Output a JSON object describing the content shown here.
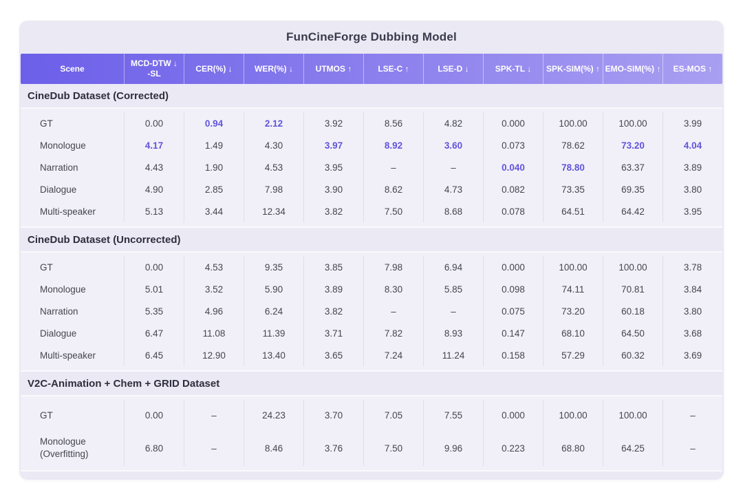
{
  "colors": {
    "card_background": "#EAE9F4",
    "rows_background": "#F1F0F8",
    "header_gradient_start": "#6C5FE9",
    "header_gradient_end": "#A99FF1",
    "header_text": "#FFFFFF",
    "highlight_value": "#6154DB",
    "body_text": "#45454F"
  },
  "chart_data": {
    "type": "table",
    "title": "FunCineForge Dubbing Model",
    "columns": [
      {
        "text": "Scene",
        "sub": ""
      },
      {
        "text": "MCD-DTW ↓",
        "sub": "-SL"
      },
      {
        "text": "CER(%) ↓",
        "sub": ""
      },
      {
        "text": "WER(%) ↓",
        "sub": ""
      },
      {
        "text": "UTMOS ↑",
        "sub": ""
      },
      {
        "text": "LSE-C ↑",
        "sub": ""
      },
      {
        "text": "LSE-D ↓",
        "sub": ""
      },
      {
        "text": "SPK-TL ↓",
        "sub": ""
      },
      {
        "text": "SPK-SIM(%) ↑",
        "sub": ""
      },
      {
        "text": "EMO-SIM(%) ↑",
        "sub": ""
      },
      {
        "text": "ES-MOS ↑",
        "sub": ""
      }
    ],
    "sections": [
      {
        "title": "CineDub Dataset (Corrected)",
        "rows": [
          {
            "scene": "GT",
            "values": [
              "0.00",
              "0.94",
              "2.12",
              "3.92",
              "8.56",
              "4.82",
              "0.000",
              "100.00",
              "100.00",
              "3.99"
            ],
            "highlights": [
              1,
              2
            ]
          },
          {
            "scene": "Monologue",
            "values": [
              "4.17",
              "1.49",
              "4.30",
              "3.97",
              "8.92",
              "3.60",
              "0.073",
              "78.62",
              "73.20",
              "4.04"
            ],
            "highlights": [
              0,
              3,
              4,
              5,
              8,
              9
            ]
          },
          {
            "scene": "Narration",
            "values": [
              "4.43",
              "1.90",
              "4.53",
              "3.95",
              "–",
              "–",
              "0.040",
              "78.80",
              "63.37",
              "3.89"
            ],
            "highlights": [
              6,
              7
            ]
          },
          {
            "scene": "Dialogue",
            "values": [
              "4.90",
              "2.85",
              "7.98",
              "3.90",
              "8.62",
              "4.73",
              "0.082",
              "73.35",
              "69.35",
              "3.80"
            ],
            "highlights": []
          },
          {
            "scene": "Multi-speaker",
            "values": [
              "5.13",
              "3.44",
              "12.34",
              "3.82",
              "7.50",
              "8.68",
              "0.078",
              "64.51",
              "64.42",
              "3.95"
            ],
            "highlights": []
          }
        ]
      },
      {
        "title": "CineDub Dataset (Uncorrected)",
        "rows": [
          {
            "scene": "GT",
            "values": [
              "0.00",
              "4.53",
              "9.35",
              "3.85",
              "7.98",
              "6.94",
              "0.000",
              "100.00",
              "100.00",
              "3.78"
            ],
            "highlights": []
          },
          {
            "scene": "Monologue",
            "values": [
              "5.01",
              "3.52",
              "5.90",
              "3.89",
              "8.30",
              "5.85",
              "0.098",
              "74.11",
              "70.81",
              "3.84"
            ],
            "highlights": []
          },
          {
            "scene": "Narration",
            "values": [
              "5.35",
              "4.96",
              "6.24",
              "3.82",
              "–",
              "–",
              "0.075",
              "73.20",
              "60.18",
              "3.80"
            ],
            "highlights": []
          },
          {
            "scene": "Dialogue",
            "values": [
              "6.47",
              "11.08",
              "11.39",
              "3.71",
              "7.82",
              "8.93",
              "0.147",
              "68.10",
              "64.50",
              "3.68"
            ],
            "highlights": []
          },
          {
            "scene": "Multi-speaker",
            "values": [
              "6.45",
              "12.90",
              "13.40",
              "3.65",
              "7.24",
              "11.24",
              "0.158",
              "57.29",
              "60.32",
              "3.69"
            ],
            "highlights": []
          }
        ]
      },
      {
        "title": "V2C-Animation + Chem + GRID Dataset",
        "rows": [
          {
            "scene": "GT",
            "values": [
              "0.00",
              "–",
              "24.23",
              "3.70",
              "7.05",
              "7.55",
              "0.000",
              "100.00",
              "100.00",
              "–"
            ],
            "highlights": []
          },
          {
            "scene": "Monologue",
            "scene_sub": "(Overfitting)",
            "values": [
              "6.80",
              "–",
              "8.46",
              "3.76",
              "7.50",
              "9.96",
              "0.223",
              "68.80",
              "64.25",
              "–"
            ],
            "highlights": []
          }
        ]
      }
    ]
  }
}
